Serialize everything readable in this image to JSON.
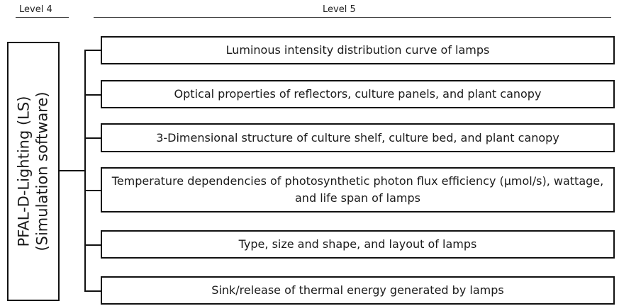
{
  "headers": {
    "level4": "Level 4",
    "level5": "Level 5"
  },
  "root": {
    "line1": "PFAL-D-Lighting (LS)",
    "line2": "(Simulation software)"
  },
  "nodes": [
    "Luminous intensity distribution curve of lamps",
    "Optical properties of reflectors, culture panels, and plant canopy",
    "3-Dimensional structure of culture shelf, culture bed, and plant canopy",
    "Temperature dependencies of photosynthetic photon flux efficiency (μmol/s), wattage, and life span of lamps",
    "Type, size and shape, and layout of lamps",
    "Sink/release of thermal energy generated by lamps"
  ]
}
